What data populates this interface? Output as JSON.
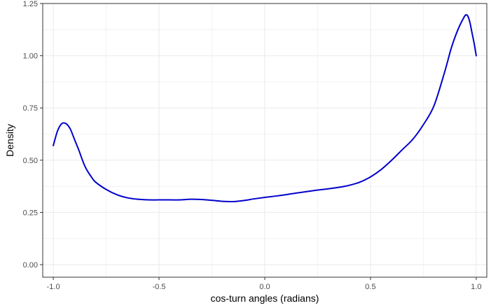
{
  "chart_data": {
    "type": "line",
    "title": "",
    "xlabel": "cos-turn angles (radians)",
    "ylabel": "Density",
    "xlim": [
      -1.05,
      1.05
    ],
    "ylim": [
      -0.06,
      1.25
    ],
    "x_ticks": [
      -1.0,
      -0.5,
      0.0,
      0.5,
      1.0
    ],
    "x_tick_labels": [
      "-1.0",
      "-0.5",
      "0.0",
      "0.5",
      "1.0"
    ],
    "y_ticks": [
      0.0,
      0.25,
      0.5,
      0.75,
      1.0,
      1.25
    ],
    "y_tick_labels": [
      "0.00",
      "0.25",
      "0.50",
      "0.75",
      "1.00",
      "1.25"
    ],
    "grid": true,
    "line_color": "#0000cd",
    "grid_color": "#ebebeb",
    "frame_color": "#333333",
    "series": [
      {
        "x": [
          -1.0,
          -0.98,
          -0.96,
          -0.94,
          -0.92,
          -0.9,
          -0.88,
          -0.85,
          -0.82,
          -0.8,
          -0.75,
          -0.7,
          -0.65,
          -0.6,
          -0.55,
          -0.5,
          -0.45,
          -0.4,
          -0.35,
          -0.3,
          -0.25,
          -0.2,
          -0.15,
          -0.1,
          -0.05,
          0.0,
          0.05,
          0.1,
          0.15,
          0.2,
          0.25,
          0.3,
          0.35,
          0.4,
          0.45,
          0.5,
          0.55,
          0.6,
          0.65,
          0.7,
          0.75,
          0.8,
          0.85,
          0.88,
          0.9,
          0.92,
          0.94,
          0.95,
          0.96,
          0.97,
          0.98,
          0.99,
          1.0
        ],
        "y": [
          0.57,
          0.64,
          0.675,
          0.675,
          0.65,
          0.6,
          0.55,
          0.47,
          0.42,
          0.395,
          0.36,
          0.335,
          0.32,
          0.313,
          0.31,
          0.31,
          0.31,
          0.31,
          0.313,
          0.312,
          0.308,
          0.303,
          0.302,
          0.307,
          0.315,
          0.322,
          0.328,
          0.335,
          0.343,
          0.35,
          0.357,
          0.363,
          0.37,
          0.38,
          0.395,
          0.42,
          0.455,
          0.5,
          0.55,
          0.6,
          0.67,
          0.76,
          0.92,
          1.03,
          1.09,
          1.14,
          1.18,
          1.195,
          1.19,
          1.16,
          1.11,
          1.06,
          1.0
        ]
      }
    ]
  }
}
